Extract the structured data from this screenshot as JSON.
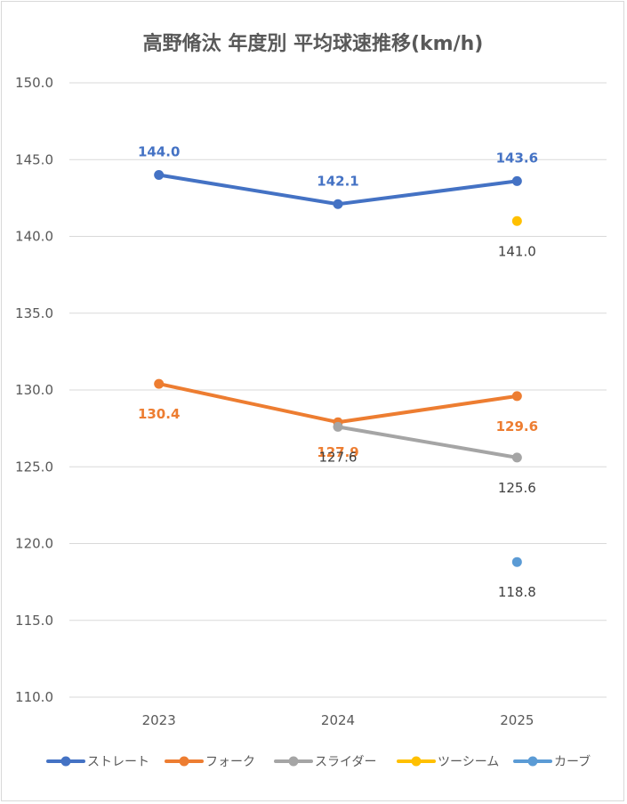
{
  "chart_data": {
    "type": "line",
    "title": "高野脩汰 年度別 平均球速推移(km/h)",
    "categories": [
      "2023",
      "2024",
      "2025"
    ],
    "ylim": [
      110.0,
      150.0
    ],
    "ytick_step": 5,
    "yticks": [
      "150.0",
      "145.0",
      "140.0",
      "135.0",
      "130.0",
      "125.0",
      "120.0",
      "115.0",
      "110.0"
    ],
    "grid": true,
    "legend_position": "bottom",
    "series": [
      {
        "name": "ストレート",
        "color": "#4472c4",
        "values": [
          144.0,
          142.1,
          143.6
        ],
        "labels": [
          "144.0",
          "142.1",
          "143.6"
        ],
        "label_placement": "above"
      },
      {
        "name": "フォーク",
        "color": "#ed7d31",
        "values": [
          130.4,
          127.9,
          129.6
        ],
        "labels": [
          "130.4",
          "127.9",
          "129.6"
        ],
        "label_placement": "below"
      },
      {
        "name": "スライダー",
        "color": "#a5a5a5",
        "values": [
          null,
          127.6,
          125.6
        ],
        "labels": [
          "",
          "127.6",
          "125.6"
        ],
        "label_placement": "below"
      },
      {
        "name": "ツーシーム",
        "color": "#ffc000",
        "values": [
          null,
          null,
          141.0
        ],
        "labels": [
          "",
          "",
          "141.0"
        ],
        "label_placement": "below"
      },
      {
        "name": "カーブ",
        "color": "#5b9bd5",
        "values": [
          null,
          null,
          118.8
        ],
        "labels": [
          "",
          "",
          "118.8"
        ],
        "label_placement": "below"
      }
    ]
  }
}
